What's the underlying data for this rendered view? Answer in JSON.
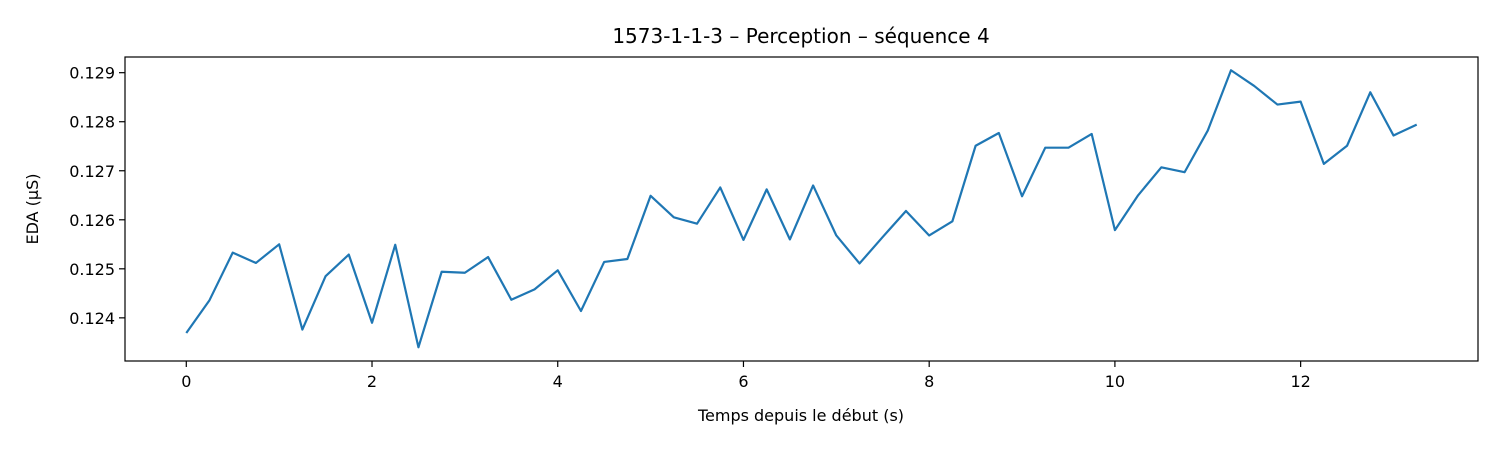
{
  "chart_data": {
    "type": "line",
    "title": "1573-1-1-3 – Perception – séquence 4",
    "xlabel": "Temps depuis le début (s)",
    "ylabel": "EDA (µS)",
    "xlim": [
      -0.66,
      13.91
    ],
    "ylim": [
      0.12312,
      0.12932
    ],
    "x_ticks": [
      0,
      2,
      4,
      6,
      8,
      10,
      12
    ],
    "x_tick_labels": [
      "0",
      "2",
      "4",
      "6",
      "8",
      "10",
      "12"
    ],
    "y_ticks": [
      0.124,
      0.125,
      0.126,
      0.127,
      0.128,
      0.129
    ],
    "y_tick_labels": [
      "0.124",
      "0.125",
      "0.126",
      "0.127",
      "0.128",
      "0.129"
    ],
    "grid": false,
    "line_color": "#1f77b4",
    "series": [
      {
        "x": [
          0,
          0.25,
          0.5,
          0.75,
          1.0,
          1.25,
          1.5,
          1.75,
          2.0,
          2.25,
          2.5,
          2.75,
          3.0,
          3.25,
          3.5,
          3.75,
          4.0,
          4.25,
          4.5,
          4.75,
          5.0,
          5.25,
          5.5,
          5.75,
          6.0,
          6.25,
          6.5,
          6.75,
          7.0,
          7.25,
          7.5,
          7.75,
          8.0,
          8.25,
          8.5,
          8.75,
          9.0,
          9.25,
          9.5,
          9.75,
          10.0,
          10.25,
          10.5,
          10.75,
          11.0,
          11.25,
          11.5,
          11.75,
          12.0,
          12.25,
          12.5,
          12.75,
          13.0,
          13.25
        ],
        "y": [
          0.12369,
          0.12436,
          0.12533,
          0.12512,
          0.1255,
          0.12376,
          0.12485,
          0.12529,
          0.1239,
          0.12549,
          0.1234,
          0.12494,
          0.12492,
          0.12524,
          0.12437,
          0.12458,
          0.12497,
          0.12414,
          0.12514,
          0.1252,
          0.12649,
          0.12605,
          0.12592,
          0.12666,
          0.12559,
          0.12662,
          0.1256,
          0.1267,
          0.12568,
          0.12511,
          0.12565,
          0.12618,
          0.12568,
          0.12597,
          0.12751,
          0.12777,
          0.12648,
          0.12747,
          0.12747,
          0.12775,
          0.12579,
          0.1265,
          0.12707,
          0.12697,
          0.12782,
          0.12905,
          0.12873,
          0.12835,
          0.12841,
          0.12714,
          0.12751,
          0.1286,
          0.12772,
          0.12794
        ]
      }
    ]
  }
}
